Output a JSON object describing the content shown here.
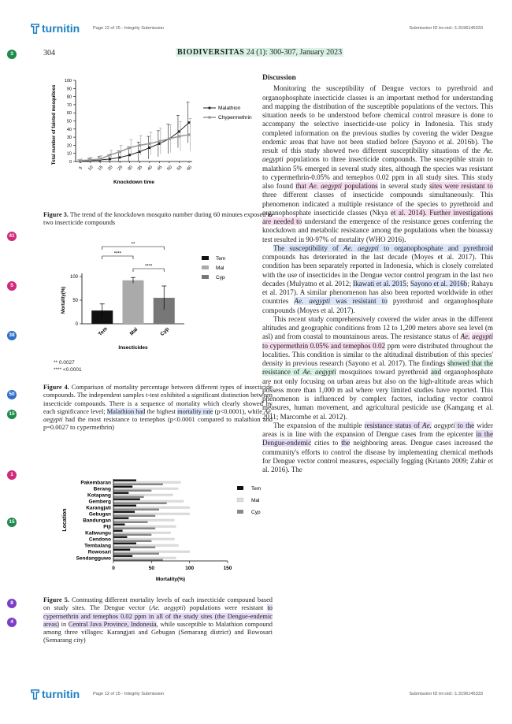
{
  "header": {
    "logo_text": "turnitin",
    "page_info": "Page 12 of 15 - Integrity Submission",
    "submission_id": "Submission ID trn:oid:::1:3196145333"
  },
  "journal": {
    "page_number": "304",
    "name": "BIODIVERSITAS",
    "issue": "24 (1): 300-307, January 2023"
  },
  "markers": [
    {
      "label": "3",
      "color": "#1f8a4c"
    },
    {
      "label": "41",
      "color": "#d12a7a"
    },
    {
      "label": "5",
      "color": "#d12a7a"
    },
    {
      "label": "38",
      "color": "#2f6fc9"
    },
    {
      "label": "50",
      "color": "#2f6fc9"
    },
    {
      "label": "15",
      "color": "#1f8a4c"
    },
    {
      "label": "1",
      "color": "#d12a7a"
    },
    {
      "label": "15",
      "color": "#1f8a4c"
    },
    {
      "label": "8",
      "color": "#7b3fc6"
    },
    {
      "label": "4",
      "color": "#7b3fc6"
    }
  ],
  "figure3": {
    "caption_label": "Figure 3.",
    "caption_text": " The trend of the knockdown mosquito number during 60 minutes exposed to two insecticide compounds"
  },
  "figure4": {
    "caption_label": "Figure 4.",
    "caption_text_1": " Comparison of mortality percentage between different types of insecticide compounds. The independent samples t-test exhibited a significant distinction between insecticide compounds. There is a sequence of mortality which clearly showed by each significance level; ",
    "caption_hl_1": "Malathion had",
    "caption_text_2": " the highest ",
    "caption_hl_2": "mortality rate",
    "caption_text_3": " (p<0.0001), while ",
    "caption_it_1": "Ae. aegypti",
    "caption_text_4": " had the most resistance to temephos (p<0.0001 compared to malathion and p=0.0027 to cypermethrin)",
    "sig_note_1": "**  0.0027",
    "sig_note_2": "****  <0.0001"
  },
  "figure5": {
    "caption_label": "Figure 5.",
    "caption_text_1": " Contrasting different mortality levels of each insecticide compound based on study sites. The Dengue vector (",
    "caption_it_1": "Ae. aegypti",
    "caption_text_2": ") populations were resistant ",
    "caption_hl_1": "to cypermethrin and temephos 0.02 ppm in all of the study sites (the Dengue-endemic areas)",
    "caption_text_3": " in ",
    "caption_hl_2": "Central Java Province, Indonesia",
    "caption_text_4": ", while susceptible to Malathion compound among three villages: Karangjati and Gebugan (Semarang district) and Rowosari (Semarang city)"
  },
  "chart_data": [
    {
      "type": "line",
      "x": [
        5,
        10,
        15,
        20,
        25,
        30,
        35,
        40,
        45,
        50,
        55,
        60
      ],
      "xlabel": "Knockdown time",
      "ylabel": "Total number of fainted mosquitoes",
      "ylim": [
        0,
        100
      ],
      "yticks": [
        0,
        10,
        20,
        30,
        40,
        50,
        60,
        70,
        80,
        90,
        100
      ],
      "legend_position": "right",
      "series": [
        {
          "name": "Malathion",
          "color": "#222222",
          "values": [
            0,
            1,
            2,
            3,
            5,
            8,
            12,
            17,
            22,
            28,
            37,
            48
          ],
          "errors": [
            2,
            3,
            4,
            5,
            8,
            10,
            12,
            14,
            16,
            18,
            20,
            25
          ]
        },
        {
          "name": "Chypermethrin",
          "color": "#999999",
          "values": [
            1,
            2,
            3,
            8,
            12,
            17,
            20,
            22,
            25,
            28,
            31,
            33
          ],
          "errors": [
            2,
            3,
            4,
            6,
            8,
            10,
            12,
            14,
            16,
            17,
            18,
            20
          ]
        }
      ]
    },
    {
      "type": "bar",
      "categories": [
        "Tem",
        "Mal",
        "Cyp"
      ],
      "values": [
        28,
        92,
        55
      ],
      "errors": [
        14,
        6,
        25
      ],
      "colors": [
        "#111111",
        "#aaaaaa",
        "#777777"
      ],
      "xlabel": "Insecticides",
      "ylabel": "Mortality(%)",
      "ylim": [
        0,
        100
      ],
      "yticks": [
        0,
        50,
        100
      ],
      "legend": [
        "Tem",
        "Mal",
        "Cyp"
      ],
      "significance": [
        {
          "pair": [
            "Tem",
            "Mal"
          ],
          "label": "****"
        },
        {
          "pair": [
            "Tem",
            "Cyp"
          ],
          "label": "**"
        },
        {
          "pair": [
            "Mal",
            "Cyp"
          ],
          "label": "****"
        }
      ]
    },
    {
      "type": "bar",
      "orientation": "horizontal",
      "categories": [
        "Pakembaran",
        "Berang",
        "Kotapang",
        "Gemberg",
        "Karangjati",
        "Gebugan",
        "Bandungan",
        "Piji",
        "Kaliwungu",
        "Cendono",
        "Tembalang",
        "Rowosari",
        "Sendangguwo"
      ],
      "xlabel": "Mortality(%)",
      "ylabel": "Location",
      "xlim": [
        0,
        150
      ],
      "xticks": [
        0,
        50,
        100,
        150
      ],
      "legend": [
        "Tem",
        "Mal",
        "Cyp"
      ],
      "series": [
        {
          "name": "Tem",
          "color": "#111111",
          "values": [
            30,
            25,
            20,
            35,
            30,
            28,
            20,
            15,
            12,
            18,
            30,
            22,
            25
          ]
        },
        {
          "name": "Mal",
          "color": "#dddddd",
          "values": [
            88,
            85,
            78,
            92,
            100,
            100,
            80,
            82,
            75,
            80,
            85,
            100,
            82
          ]
        },
        {
          "name": "Cyp",
          "color": "#888888",
          "values": [
            65,
            50,
            40,
            70,
            60,
            55,
            45,
            55,
            50,
            50,
            55,
            60,
            65
          ]
        }
      ]
    }
  ],
  "discussion": {
    "heading": "Discussion",
    "p1": [
      {
        "t": "Monitoring the susceptibility of Dengue vectors to pyrethroid and organophosphate insecticide classes is an important method for understanding and mapping the distribution of the susceptible populations of the vectors. This situation needs to be understood before chemical control measure is done to accompany the selective insecticide-use policy in Indonesia. This study completed information on the previous studies by covering the wider Dengue endemic areas that have not been studied before (Sayono et al. 2016b). The result of this study showed two different susceptibility situations of the "
      },
      {
        "t": "Ae. aegypti",
        "i": true
      },
      {
        "t": " populations to three insecticide compounds. The susceptible strain to malathion 5% emerged in several study sites, although the species was resistant to cypermethrin-0.05% and temephos 0.02 ppm in all study sites. This study also found "
      },
      {
        "t": "that ",
        "h": "pink"
      },
      {
        "t": "Ae. aegypti",
        "i": true,
        "h": "pink"
      },
      {
        "t": " populations",
        "h": "pink"
      },
      {
        "t": " in several study "
      },
      {
        "t": "sites were resistant to",
        "h": "pink"
      },
      {
        "t": " three different classes of insecticide compounds simultaneously. This phenomenon indicated a multiple resistance of the species to pyrethroid and organophosphate insecticide classes (Nkya "
      },
      {
        "t": "et al. 2014). Further investigations are needed to",
        "h": "pink"
      },
      {
        "t": " understand the emergence of the resistance genes conferring the knockdown and metabolic resistance among the populations when the bioassay test resulted in 90-97% of mortality (WHO 2016)."
      }
    ],
    "p2": [
      {
        "t": "The susceptibility of ",
        "h": "blue"
      },
      {
        "t": "Ae. aegypti",
        "i": true,
        "h": "blue"
      },
      {
        "t": " to organophosphate and pyrethroid",
        "h": "blue"
      },
      {
        "t": " compounds has deteriorated in the last decade (Moyes et al. 2017). This condition has been separately reported in Indonesia, which is closely correlated with the use of insecticides in the Dengue vector control program in the last two decades (Mulyatno et al. 2012; "
      },
      {
        "t": "Ikawati et al. 2015",
        "h": "blue"
      },
      {
        "t": "; "
      },
      {
        "t": "Sayono et al. 2016b",
        "h": "blue"
      },
      {
        "t": "; Rahayu et al. 2017). A similar phenomenon has also been reported worldwide in other countries "
      },
      {
        "t": "Ae. aegypti",
        "i": true,
        "h": "blue"
      },
      {
        "t": " was resistant to",
        "h": "blue"
      },
      {
        "t": " pyrethroid and organophosphate compounds (Moyes et al. 2017)."
      }
    ],
    "p3": [
      {
        "t": "This recent study comprehensively covered the wider areas in the different altitudes and geographic conditions from 12 to 1,200 meters above sea level (m asl) and from coastal to mountainous areas. The resistance status of "
      },
      {
        "t": "Ae.",
        "i": true,
        "h": "pink"
      },
      {
        "t": " "
      },
      {
        "t": "aegypti",
        "i": true,
        "h": "pink"
      },
      {
        "t": " to cypermethrin 0.05% and temephos 0.02",
        "h": "pink"
      },
      {
        "t": " ppm were distributed throughout the localities. This condition is similar to the altitudinal distribution of this species' density in previous research (Sayono et al. 2017). The findings "
      },
      {
        "t": "showed that the resistance of ",
        "h": "green"
      },
      {
        "t": "Ae. aegypti",
        "i": true,
        "h": "green"
      },
      {
        "t": " mosquitoes toward pyrethroid "
      },
      {
        "t": "and",
        "h": "green"
      },
      {
        "t": " organophosphate are not only focusing on urban areas but also on the high-altitude areas which possess more than 1,000 m asl where very limited studies have reported. This phenomenon is influenced by complex factors, including vector control measures, human movement, and agricultural pesticide use (Kamgang et al. 2011; Marcombe et al. 2012)."
      }
    ],
    "p4": [
      {
        "t": "The expansion of the multiple "
      },
      {
        "t": "resistance status of ",
        "h": "purple"
      },
      {
        "t": "Ae.",
        "i": true,
        "h": "purple"
      },
      {
        "t": " "
      },
      {
        "t": "aegypti",
        "i": true
      },
      {
        "t": " to the",
        "h": "purple"
      },
      {
        "t": " wider areas is in line with the expansion of Dengue cases from the epicenter "
      },
      {
        "t": "in the Dengue-endemic",
        "h": "purple"
      },
      {
        "t": " cities to "
      },
      {
        "t": "the",
        "h": "purple"
      },
      {
        "t": " neighboring areas. Dengue cases increased the community's efforts to control the disease by implementing chemical methods for Dengue vector control measures, especially fogging (Krianto 2009; Zahir et al. 2016). The"
      }
    ]
  },
  "footer": {
    "logo_text": "turnitin",
    "page_info": "Page 12 of 15 - Integrity Submission",
    "submission_id": "Submission ID trn:oid:::1:3196145333"
  }
}
